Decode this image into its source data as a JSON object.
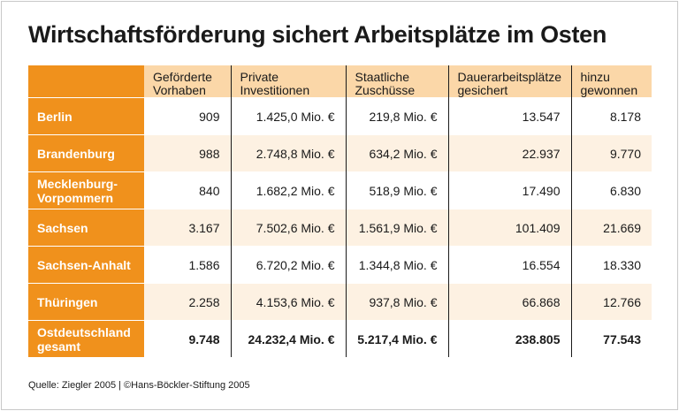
{
  "title": "Wirtschaftsförderung sichert Arbeitsplätze im Osten",
  "table": {
    "headers": {
      "vorhaben": {
        "line1": "Geförderte",
        "line2": "Vorhaben"
      },
      "private": {
        "line1": "Private",
        "line2": "Investitionen"
      },
      "zuschuesse": {
        "line1": "Staatliche",
        "line2": "Zuschüsse"
      },
      "dauer": {
        "line1": "Dauerarbeitsplätze",
        "line2": "gesichert"
      },
      "hinzu": {
        "line1": "hinzu",
        "line2": "gewonnen"
      }
    },
    "rows": [
      {
        "label1": "Berlin",
        "label2": "",
        "vorhaben": "909",
        "private": "1.425,0 Mio. €",
        "zuschuesse": "219,8 Mio. €",
        "dauer": "13.547",
        "hinzu": "8.178"
      },
      {
        "label1": "Brandenburg",
        "label2": "",
        "vorhaben": "988",
        "private": "2.748,8 Mio. €",
        "zuschuesse": "634,2 Mio. €",
        "dauer": "22.937",
        "hinzu": "9.770"
      },
      {
        "label1": "Mecklenburg-",
        "label2": "Vorpommern",
        "vorhaben": "840",
        "private": "1.682,2 Mio. €",
        "zuschuesse": "518,9 Mio. €",
        "dauer": "17.490",
        "hinzu": "6.830"
      },
      {
        "label1": "Sachsen",
        "label2": "",
        "vorhaben": "3.167",
        "private": "7.502,6 Mio. €",
        "zuschuesse": "1.561,9 Mio. €",
        "dauer": "101.409",
        "hinzu": "21.669"
      },
      {
        "label1": "Sachsen-Anhalt",
        "label2": "",
        "vorhaben": "1.586",
        "private": "6.720,2 Mio. €",
        "zuschuesse": "1.344,8 Mio. €",
        "dauer": "16.554",
        "hinzu": "18.330"
      },
      {
        "label1": "Thüringen",
        "label2": "",
        "vorhaben": "2.258",
        "private": "4.153,6 Mio. €",
        "zuschuesse": "937,8 Mio. €",
        "dauer": "66.868",
        "hinzu": "12.766"
      },
      {
        "label1": "Ostdeutschland",
        "label2": "gesamt",
        "vorhaben": "9.748",
        "private": "24.232,4 Mio. €",
        "zuschuesse": "5.217,4 Mio. €",
        "dauer": "238.805",
        "hinzu": "77.543"
      }
    ]
  },
  "source": "Quelle: Ziegler 2005 | ©Hans-Böckler-Stiftung 2005",
  "colors": {
    "accent": "#f0911c",
    "header_bg": "#fbd7a8",
    "row_alt": "#fdf1e2"
  }
}
